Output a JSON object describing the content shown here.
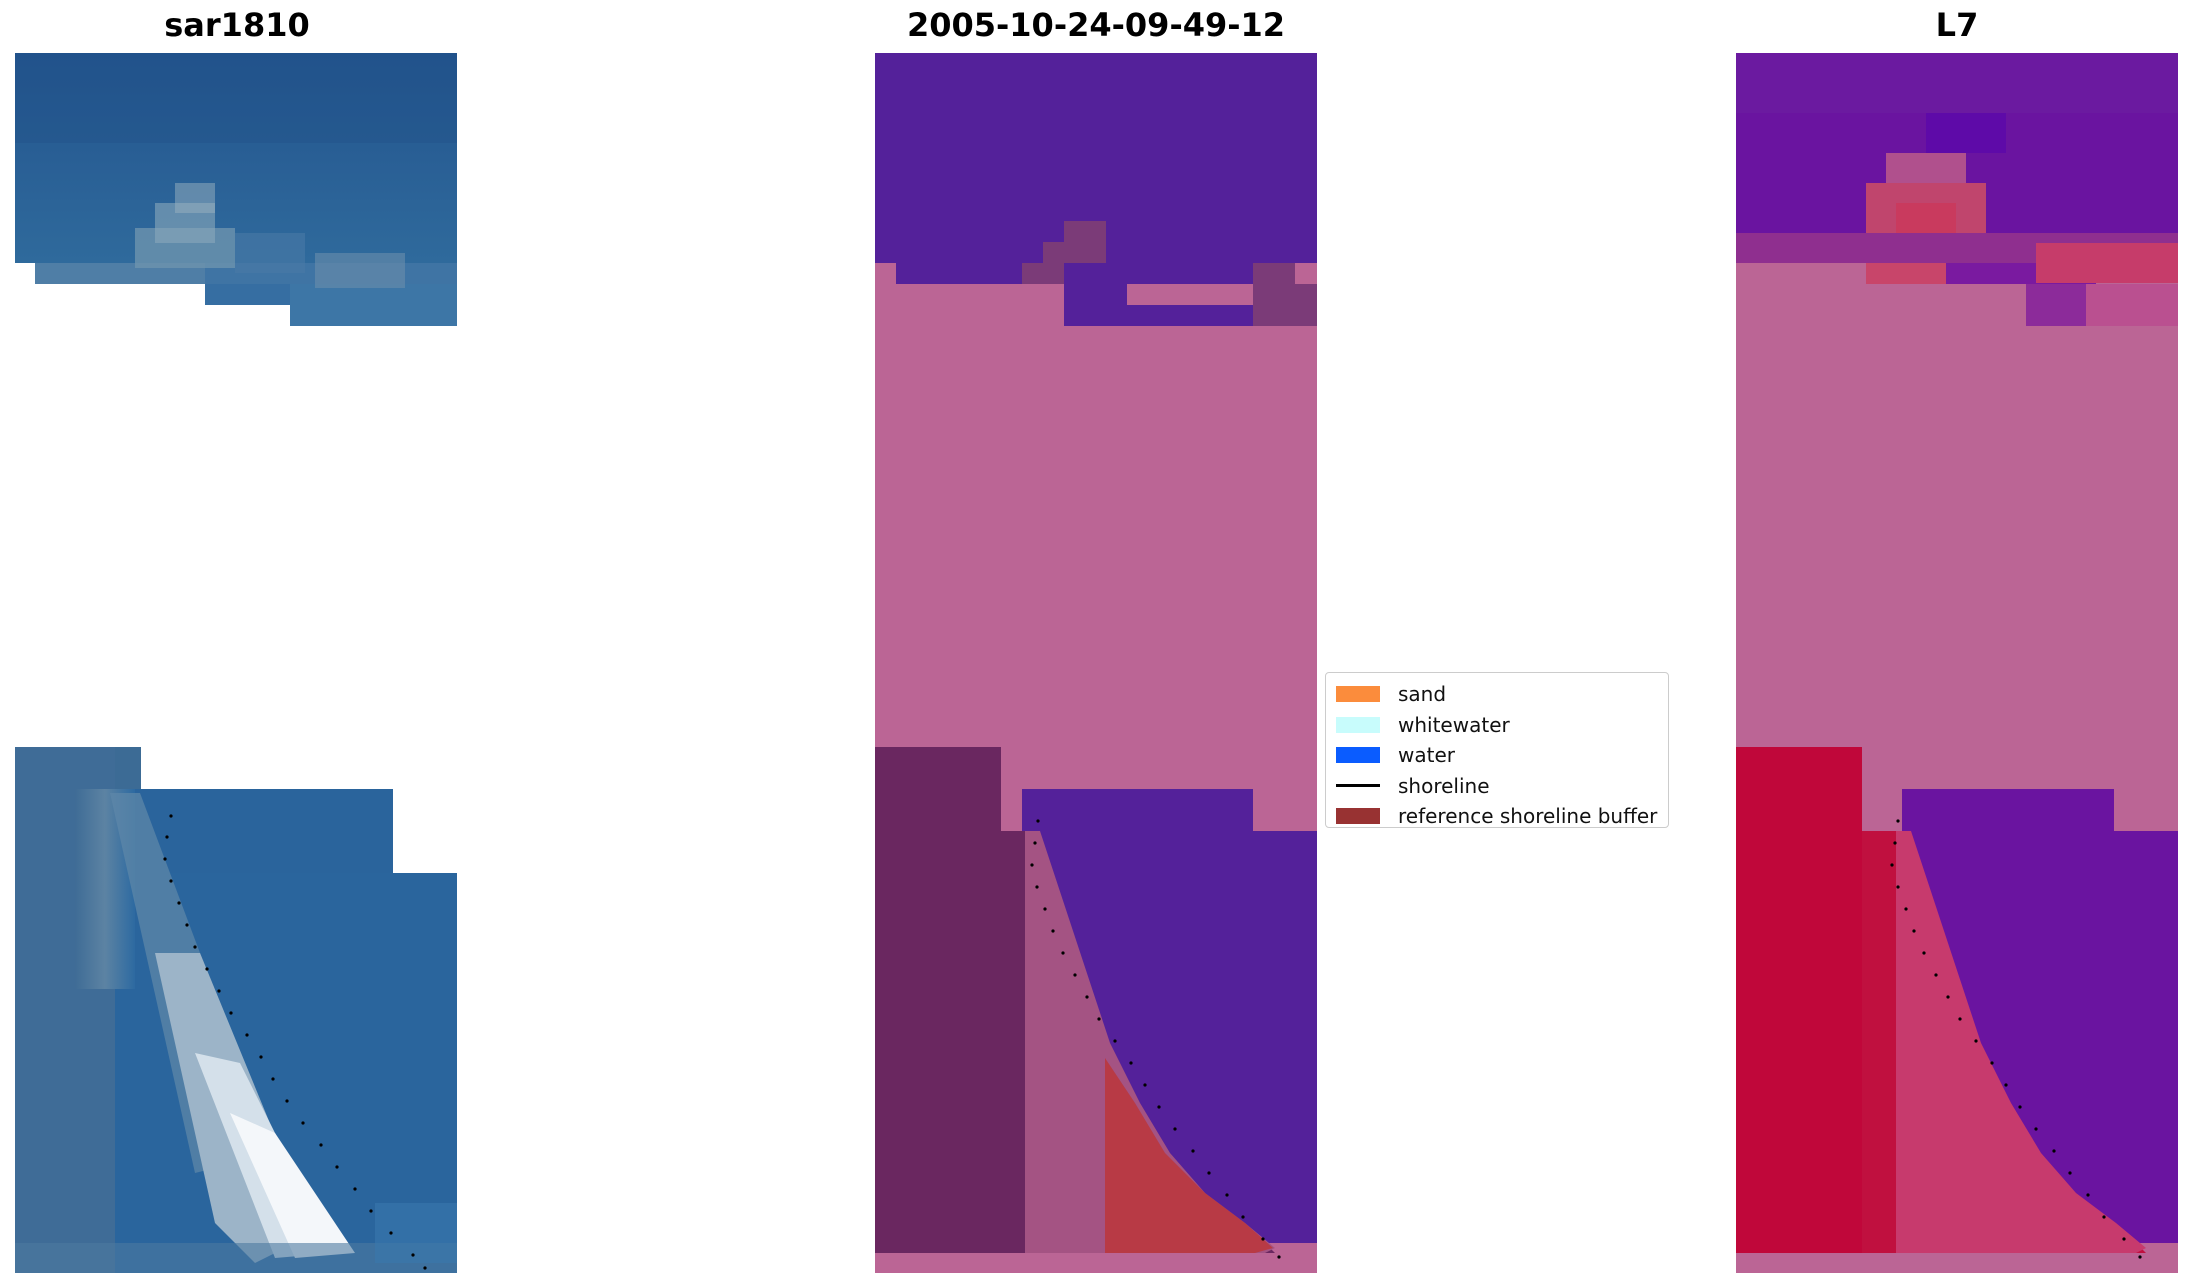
{
  "panels": [
    {
      "id": "rgb",
      "title": "sar1810"
    },
    {
      "id": "classified",
      "title": "2005-10-24-09-49-12"
    },
    {
      "id": "mndwi",
      "title": "L7"
    }
  ],
  "legend": {
    "items": [
      {
        "label": "sand",
        "color": "#fb8c3c",
        "kind": "patch"
      },
      {
        "label": "whitewater",
        "color": "#c8fcfc",
        "kind": "patch"
      },
      {
        "label": "water",
        "color": "#0a5cff",
        "kind": "patch"
      },
      {
        "label": "shoreline",
        "color": "#000000",
        "kind": "line"
      },
      {
        "label": "reference shoreline buffer",
        "color": "#983232",
        "kind": "patch"
      }
    ]
  },
  "colors": {
    "background": "#ffffff",
    "buffer_pink": "#bb6595",
    "water_class": "#54219a",
    "sand_buffer": "#b83a45",
    "land_dark": "#6a2760",
    "mndwi_land": "#bf0b38",
    "mndwi_water": "#6a14a0",
    "sea_rgb": "#27639a",
    "surf_rgb": "#e6eef4"
  }
}
